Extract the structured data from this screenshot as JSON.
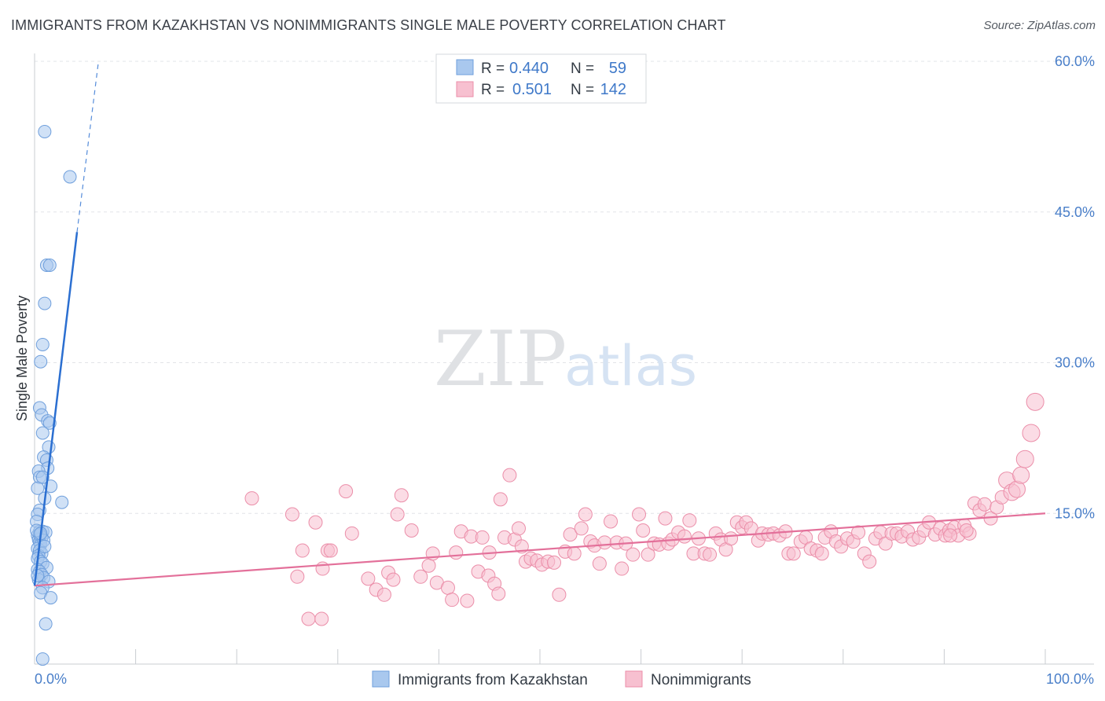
{
  "header": {
    "title": "IMMIGRANTS FROM KAZAKHSTAN VS NONIMMIGRANTS SINGLE MALE POVERTY CORRELATION CHART",
    "source": "Source: ZipAtlas.com"
  },
  "watermark": {
    "zip": "ZIP",
    "atlas": "atlas"
  },
  "colors": {
    "blue_fill": "#a9c8ee",
    "blue_stroke": "#6f9fdc",
    "blue_line": "#2b6fd1",
    "pink_fill": "#f7c0d0",
    "pink_stroke": "#eb8ea9",
    "pink_line": "#e3709a",
    "grid": "#e2e4e8",
    "axis_text": "#4a7fc9"
  },
  "stats_box": {
    "rows": [
      {
        "r_label": "R =",
        "r_value": "0.440",
        "n_label": "N =",
        "n_value": "59"
      },
      {
        "r_label": "R =",
        "r_value": "0.501",
        "n_label": "N =",
        "n_value": "142"
      }
    ]
  },
  "chart_data": {
    "type": "scatter",
    "title": "IMMIGRANTS FROM KAZAKHSTAN VS NONIMMIGRANTS SINGLE MALE POVERTY CORRELATION CHART",
    "ylabel": "Single Male Poverty",
    "xlabel": "",
    "xlim": [
      0,
      100
    ],
    "ylim": [
      0,
      60
    ],
    "x_tick_labels": [
      "0.0%",
      "100.0%"
    ],
    "y_ticks": [
      15,
      30,
      45,
      60
    ],
    "y_tick_labels": [
      "15.0%",
      "30.0%",
      "45.0%",
      "60.0%"
    ],
    "grid": true,
    "legend_position": "bottom-center",
    "series": [
      {
        "name": "Immigrants from Kazakhstan",
        "color": "#a9c8ee",
        "r": 0.44,
        "n": 59,
        "trend": {
          "x": [
            0.0,
            4.2
          ],
          "y": [
            7.8,
            43.0
          ],
          "dashed_to": [
            6.3,
            59.8
          ]
        },
        "points": [
          [
            1.0,
            53.0
          ],
          [
            3.5,
            48.5
          ],
          [
            1.2,
            39.7
          ],
          [
            1.5,
            39.7
          ],
          [
            1.0,
            35.9
          ],
          [
            0.8,
            31.8
          ],
          [
            0.6,
            30.1
          ],
          [
            0.5,
            25.5
          ],
          [
            0.7,
            24.8
          ],
          [
            1.3,
            24.2
          ],
          [
            1.5,
            24.0
          ],
          [
            0.8,
            23.0
          ],
          [
            1.4,
            21.6
          ],
          [
            0.9,
            20.6
          ],
          [
            1.2,
            20.3
          ],
          [
            1.3,
            19.5
          ],
          [
            0.4,
            19.2
          ],
          [
            0.5,
            18.6
          ],
          [
            0.8,
            18.6
          ],
          [
            1.6,
            17.7
          ],
          [
            0.3,
            17.5
          ],
          [
            1.0,
            16.5
          ],
          [
            2.7,
            16.1
          ],
          [
            0.5,
            15.3
          ],
          [
            0.3,
            14.9
          ],
          [
            0.2,
            14.2
          ],
          [
            0.5,
            13.2
          ],
          [
            0.8,
            13.2
          ],
          [
            1.1,
            13.1
          ],
          [
            0.3,
            12.8
          ],
          [
            0.7,
            12.6
          ],
          [
            0.4,
            12.4
          ],
          [
            0.5,
            12.1
          ],
          [
            0.6,
            11.9
          ],
          [
            0.3,
            11.5
          ],
          [
            0.5,
            11.3
          ],
          [
            0.7,
            11.0
          ],
          [
            0.4,
            10.8
          ],
          [
            0.3,
            10.5
          ],
          [
            0.6,
            10.2
          ],
          [
            0.8,
            10.0
          ],
          [
            1.2,
            9.6
          ],
          [
            0.3,
            9.4
          ],
          [
            0.5,
            9.2
          ],
          [
            0.7,
            8.9
          ],
          [
            0.9,
            8.6
          ],
          [
            0.4,
            8.4
          ],
          [
            1.4,
            8.2
          ],
          [
            0.8,
            7.6
          ],
          [
            0.6,
            7.1
          ],
          [
            1.6,
            6.6
          ],
          [
            1.1,
            4.0
          ],
          [
            0.8,
            0.5
          ],
          [
            0.5,
            12.9
          ],
          [
            0.2,
            13.3
          ],
          [
            0.9,
            12.3
          ],
          [
            0.3,
            8.8
          ],
          [
            0.6,
            13.0
          ],
          [
            1.0,
            11.7
          ]
        ]
      },
      {
        "name": "Nonimmigrants",
        "color": "#f7c0d0",
        "r": 0.501,
        "n": 142,
        "trend": {
          "x": [
            0.0,
            100.0
          ],
          "y": [
            7.8,
            15.0
          ]
        },
        "points": [
          [
            21.5,
            16.5
          ],
          [
            25.5,
            14.9
          ],
          [
            26.0,
            8.7
          ],
          [
            26.5,
            11.3
          ],
          [
            27.1,
            4.5
          ],
          [
            27.8,
            14.1
          ],
          [
            28.5,
            9.5
          ],
          [
            29.0,
            11.3
          ],
          [
            29.3,
            11.3
          ],
          [
            28.4,
            4.5
          ],
          [
            30.8,
            17.2
          ],
          [
            31.4,
            13.0
          ],
          [
            33.0,
            8.5
          ],
          [
            33.8,
            7.4
          ],
          [
            34.6,
            6.9
          ],
          [
            35.0,
            9.1
          ],
          [
            35.5,
            8.4
          ],
          [
            35.9,
            14.9
          ],
          [
            36.3,
            16.8
          ],
          [
            37.3,
            13.3
          ],
          [
            38.2,
            8.7
          ],
          [
            39.0,
            9.8
          ],
          [
            39.4,
            11.0
          ],
          [
            39.8,
            8.1
          ],
          [
            40.9,
            7.6
          ],
          [
            41.3,
            6.4
          ],
          [
            41.7,
            11.1
          ],
          [
            42.2,
            13.2
          ],
          [
            42.8,
            6.3
          ],
          [
            43.2,
            12.7
          ],
          [
            43.9,
            9.2
          ],
          [
            44.3,
            12.6
          ],
          [
            44.9,
            8.8
          ],
          [
            45.0,
            11.1
          ],
          [
            45.5,
            8.0
          ],
          [
            45.9,
            7.0
          ],
          [
            46.1,
            16.4
          ],
          [
            46.5,
            12.6
          ],
          [
            47.0,
            18.8
          ],
          [
            47.5,
            12.4
          ],
          [
            47.9,
            13.5
          ],
          [
            48.2,
            11.7
          ],
          [
            48.6,
            10.2
          ],
          [
            49.1,
            10.5
          ],
          [
            49.7,
            10.3
          ],
          [
            50.2,
            9.9
          ],
          [
            50.8,
            10.2
          ],
          [
            51.4,
            10.1
          ],
          [
            51.9,
            6.9
          ],
          [
            52.5,
            11.2
          ],
          [
            53.0,
            12.9
          ],
          [
            53.4,
            11.0
          ],
          [
            54.1,
            13.5
          ],
          [
            54.5,
            14.9
          ],
          [
            55.0,
            12.2
          ],
          [
            55.4,
            11.8
          ],
          [
            55.9,
            10.0
          ],
          [
            56.4,
            12.1
          ],
          [
            57.0,
            14.2
          ],
          [
            57.6,
            12.1
          ],
          [
            58.1,
            9.5
          ],
          [
            58.5,
            12.0
          ],
          [
            59.2,
            10.9
          ],
          [
            59.8,
            14.9
          ],
          [
            60.2,
            13.3
          ],
          [
            60.7,
            10.9
          ],
          [
            61.3,
            12.0
          ],
          [
            61.8,
            11.9
          ],
          [
            62.4,
            14.5
          ],
          [
            62.7,
            12.0
          ],
          [
            63.1,
            12.4
          ],
          [
            63.7,
            13.1
          ],
          [
            64.3,
            12.7
          ],
          [
            64.8,
            14.3
          ],
          [
            65.2,
            11.0
          ],
          [
            65.7,
            12.5
          ],
          [
            66.3,
            11.0
          ],
          [
            66.8,
            10.9
          ],
          [
            67.4,
            13.0
          ],
          [
            67.9,
            12.4
          ],
          [
            68.4,
            11.4
          ],
          [
            68.9,
            12.5
          ],
          [
            69.5,
            14.1
          ],
          [
            70.0,
            13.6
          ],
          [
            70.4,
            14.1
          ],
          [
            70.9,
            13.5
          ],
          [
            71.6,
            12.3
          ],
          [
            72.0,
            13.0
          ],
          [
            72.6,
            12.9
          ],
          [
            73.1,
            13.0
          ],
          [
            73.7,
            12.8
          ],
          [
            74.3,
            13.2
          ],
          [
            74.6,
            11.0
          ],
          [
            75.1,
            11.0
          ],
          [
            75.8,
            12.2
          ],
          [
            76.3,
            12.6
          ],
          [
            76.8,
            11.5
          ],
          [
            77.4,
            11.3
          ],
          [
            77.9,
            11.0
          ],
          [
            78.2,
            12.6
          ],
          [
            78.8,
            13.2
          ],
          [
            79.3,
            12.2
          ],
          [
            79.8,
            11.7
          ],
          [
            80.4,
            12.5
          ],
          [
            81.0,
            12.2
          ],
          [
            81.5,
            13.1
          ],
          [
            82.1,
            11.0
          ],
          [
            82.6,
            10.2
          ],
          [
            83.2,
            12.5
          ],
          [
            83.7,
            13.1
          ],
          [
            84.2,
            12.0
          ],
          [
            84.8,
            13.0
          ],
          [
            85.3,
            13.0
          ],
          [
            85.8,
            12.7
          ],
          [
            86.4,
            13.2
          ],
          [
            86.9,
            12.4
          ],
          [
            87.5,
            12.6
          ],
          [
            88.0,
            13.3
          ],
          [
            88.5,
            14.1
          ],
          [
            89.1,
            12.9
          ],
          [
            89.6,
            13.5
          ],
          [
            90.1,
            12.8
          ],
          [
            90.5,
            13.3
          ],
          [
            91.0,
            13.6
          ],
          [
            91.4,
            12.8
          ],
          [
            92.0,
            13.8
          ],
          [
            92.5,
            13.0
          ],
          [
            93.0,
            16.0
          ],
          [
            93.5,
            15.3
          ],
          [
            94.0,
            15.9
          ],
          [
            94.6,
            14.5
          ],
          [
            95.2,
            15.6
          ],
          [
            95.7,
            16.6
          ],
          [
            96.2,
            18.3
          ],
          [
            96.7,
            17.1
          ],
          [
            97.2,
            17.4
          ],
          [
            97.6,
            18.8
          ],
          [
            98.0,
            20.4
          ],
          [
            98.6,
            23.0
          ],
          [
            99.0,
            26.1
          ],
          [
            92.2,
            13.3
          ],
          [
            90.6,
            12.8
          ]
        ]
      }
    ]
  }
}
